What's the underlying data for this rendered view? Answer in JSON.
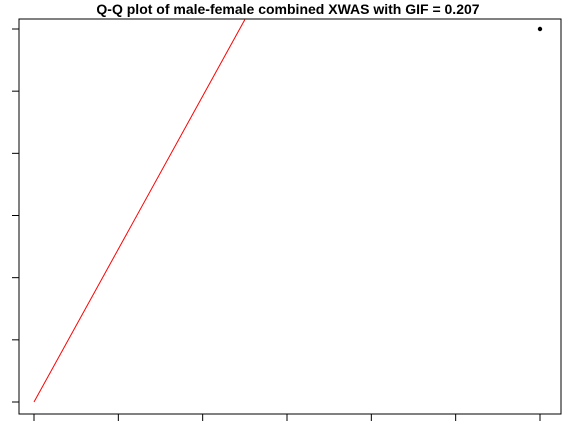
{
  "chart_data": {
    "type": "scatter",
    "title": "Q-Q plot of male-female combined XWAS with GIF = 0.207",
    "xlabel": "",
    "ylabel": "",
    "xlim": [
      0,
      6
    ],
    "ylim": [
      0,
      6
    ],
    "x_ticks": [
      0,
      1,
      2,
      3,
      4,
      5,
      6
    ],
    "y_ticks": [
      0,
      1,
      2,
      3,
      4,
      5,
      6
    ],
    "grid": false,
    "points": [
      {
        "x": 6.0,
        "y": 6.0
      }
    ],
    "reference_line": {
      "x": [
        0,
        2.5
      ],
      "y": [
        0,
        6.15
      ],
      "color": "#ff0000"
    },
    "point_color": "#000000"
  }
}
